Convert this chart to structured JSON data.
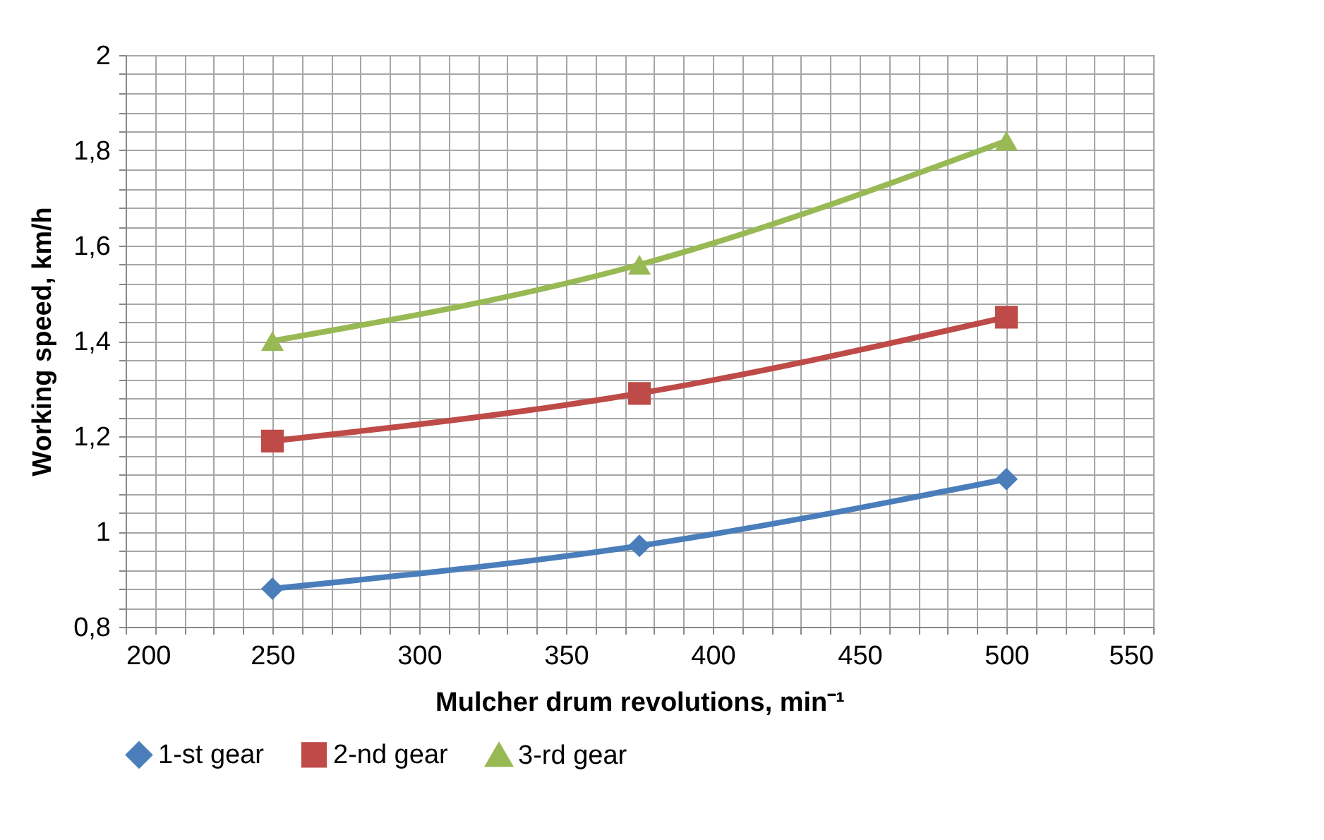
{
  "chart_data": {
    "type": "line",
    "xlabel": "Mulcher drum revolutions, min⁻¹",
    "ylabel": "Working speed, km/h",
    "x": [
      250,
      375,
      500
    ],
    "series": [
      {
        "name": "1-st gear",
        "color": "#4a7ebb",
        "marker": "diamond",
        "values": [
          0.88,
          0.97,
          1.11
        ]
      },
      {
        "name": "2-nd gear",
        "color": "#be4b48",
        "marker": "square",
        "values": [
          1.19,
          1.29,
          1.45
        ]
      },
      {
        "name": "3-rd gear",
        "color": "#98b954",
        "marker": "triangle",
        "values": [
          1.4,
          1.56,
          1.82
        ]
      }
    ],
    "xlim": [
      200,
      550
    ],
    "xticks": [
      200,
      {
        "value": 210,
        "label": null
      },
      {
        "value": 220,
        "label": null
      },
      {
        "value": 230,
        "label": null
      },
      {
        "value": 240,
        "label": null
      },
      250,
      {
        "value": 260,
        "label": null
      },
      {
        "value": 270,
        "label": null
      },
      {
        "value": 280,
        "label": null
      },
      {
        "value": 290,
        "label": null
      },
      300,
      {
        "value": 310,
        "label": null
      },
      {
        "value": 320,
        "label": null
      },
      {
        "value": 330,
        "label": null
      },
      {
        "value": 340,
        "label": null
      },
      350,
      {
        "value": 360,
        "label": null
      },
      {
        "value": 370,
        "label": null
      },
      {
        "value": 380,
        "label": null
      },
      {
        "value": 390,
        "label": null
      },
      400,
      {
        "value": 410,
        "label": null
      },
      {
        "value": 420,
        "label": null
      },
      {
        "value": 430,
        "label": null
      },
      {
        "value": 440,
        "label": null
      },
      450,
      {
        "value": 460,
        "label": null
      },
      {
        "value": 470,
        "label": null
      },
      {
        "value": 480,
        "label": null
      },
      {
        "value": 490,
        "label": null
      },
      500,
      {
        "value": 510,
        "label": null
      },
      {
        "value": 520,
        "label": null
      },
      {
        "value": 530,
        "label": null
      },
      {
        "value": 540,
        "label": null
      },
      550
    ],
    "ylim": [
      0.8,
      2
    ],
    "yticks": [
      {
        "value": 0.8,
        "label": "0,8"
      },
      {
        "value": 0.84,
        "label": null
      },
      {
        "value": 0.88,
        "label": null
      },
      {
        "value": 0.92,
        "label": null
      },
      {
        "value": 0.96,
        "label": null
      },
      1,
      {
        "value": 1.04,
        "label": null
      },
      {
        "value": 1.08,
        "label": null
      },
      {
        "value": 1.12,
        "label": null
      },
      {
        "value": 1.16,
        "label": null
      },
      {
        "value": 1.2,
        "label": "1,2"
      },
      {
        "value": 1.24,
        "label": null
      },
      {
        "value": 1.28,
        "label": null
      },
      {
        "value": 1.32,
        "label": null
      },
      {
        "value": 1.36,
        "label": null
      },
      {
        "value": 1.4,
        "label": "1,4"
      },
      {
        "value": 1.44,
        "label": null
      },
      {
        "value": 1.48,
        "label": null
      },
      {
        "value": 1.52,
        "label": null
      },
      {
        "value": 1.56,
        "label": null
      },
      {
        "value": 1.6,
        "label": "1,6"
      },
      {
        "value": 1.64,
        "label": null
      },
      {
        "value": 1.68,
        "label": null
      },
      {
        "value": 1.72,
        "label": null
      },
      {
        "value": 1.76,
        "label": null
      },
      {
        "value": 1.8,
        "label": "1,8"
      },
      {
        "value": 1.84,
        "label": null
      },
      {
        "value": 1.88,
        "label": null
      },
      {
        "value": 1.92,
        "label": null
      },
      {
        "value": 1.96,
        "label": null
      },
      2
    ],
    "grid": true,
    "legend": "bottom",
    "line_style": "solid"
  }
}
